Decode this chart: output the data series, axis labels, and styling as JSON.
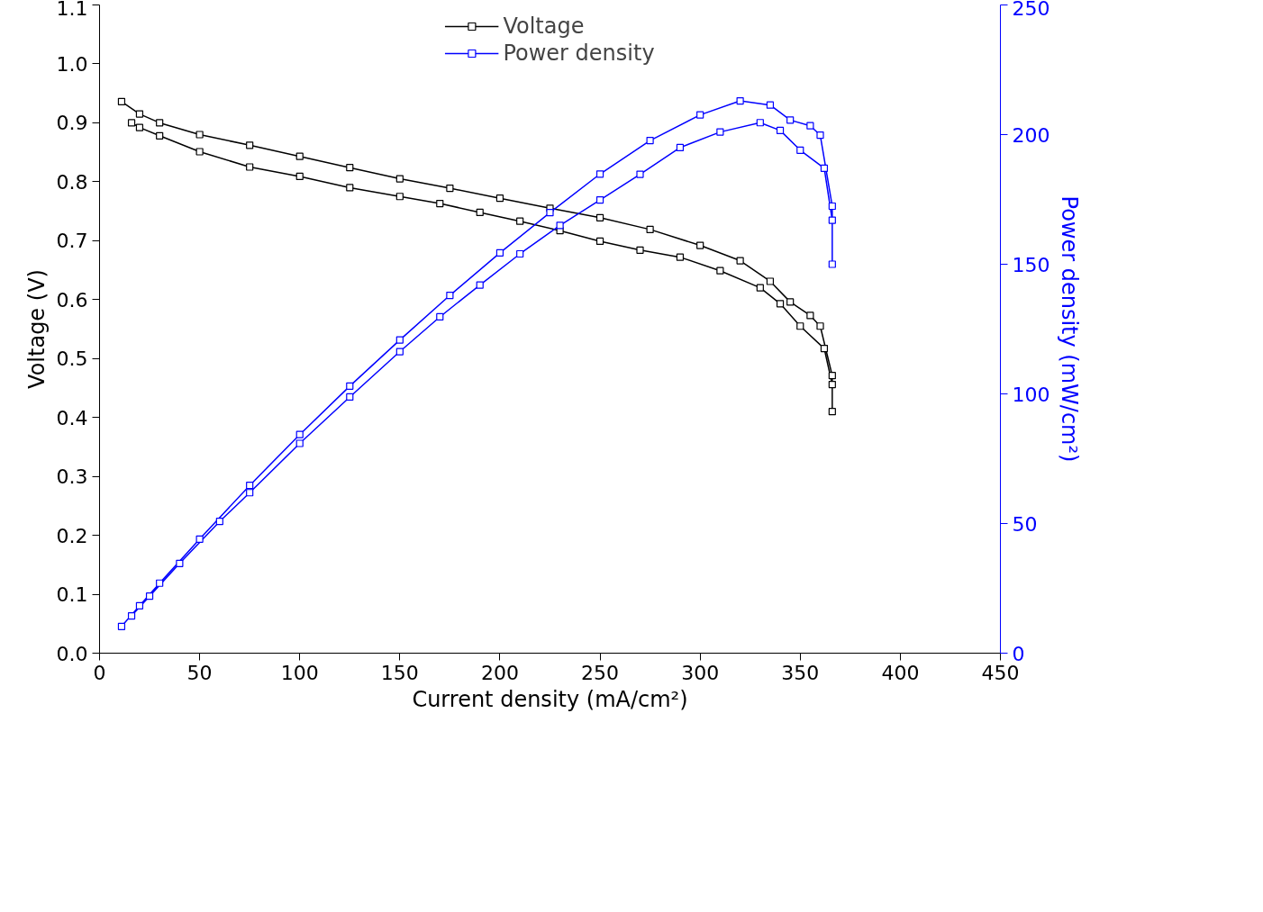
{
  "chart_data": {
    "type": "line",
    "xlabel": "Current density (mA/cm²)",
    "ylabel": "Voltage (V)",
    "y2label": "Power density (mW/cm²)",
    "xlim": [
      0,
      450
    ],
    "xticks": [
      0,
      50,
      100,
      150,
      200,
      250,
      300,
      350,
      400,
      450
    ],
    "ylim": [
      0,
      1.1
    ],
    "yticks": [
      {
        "value": 0,
        "label": "0.0"
      },
      0.1,
      0.2,
      0.3,
      0.4,
      0.5,
      0.6,
      0.7,
      0.8,
      0.9,
      {
        "value": 1.0,
        "label": "1.0"
      },
      1.1
    ],
    "y2lim": [
      0,
      250
    ],
    "y2ticks": [
      0,
      50,
      100,
      150,
      200,
      250
    ],
    "marker": "square",
    "legend": "top",
    "grid": false,
    "series": [
      {
        "name": "Voltage",
        "color": "#000000",
        "x": [
          11,
          20,
          30,
          50,
          75,
          100,
          125,
          150,
          175,
          200,
          225,
          250,
          275,
          300,
          320,
          335,
          345,
          355,
          360,
          366,
          366,
          366,
          362,
          350,
          340,
          330,
          310,
          290,
          270,
          250,
          230,
          210,
          190,
          170,
          150,
          125,
          100,
          75,
          50,
          30,
          20,
          16
        ],
        "values": [
          0.936,
          0.915,
          0.9,
          0.88,
          0.862,
          0.843,
          0.824,
          0.805,
          0.789,
          0.772,
          0.755,
          0.739,
          0.719,
          0.692,
          0.666,
          0.631,
          0.596,
          0.573,
          0.555,
          0.471,
          0.41,
          0.456,
          0.517,
          0.555,
          0.593,
          0.62,
          0.649,
          0.672,
          0.684,
          0.699,
          0.717,
          0.733,
          0.748,
          0.763,
          0.775,
          0.79,
          0.809,
          0.825,
          0.851,
          0.878,
          0.892,
          0.9
        ]
      },
      {
        "name": "Power density",
        "color": "#0000ff",
        "axis": "y2",
        "x": [
          11,
          20,
          30,
          50,
          75,
          100,
          125,
          150,
          175,
          200,
          225,
          250,
          275,
          300,
          320,
          335,
          345,
          355,
          360,
          366,
          366,
          366,
          362,
          350,
          340,
          330,
          310,
          290,
          270,
          250,
          230,
          210,
          190,
          170,
          150,
          125,
          100,
          75,
          60,
          40,
          25,
          16
        ],
        "values": [
          10.3,
          18.3,
          27,
          44,
          64.7,
          84.3,
          103,
          120.8,
          138,
          154.4,
          169.9,
          184.8,
          197.7,
          207.6,
          213,
          211.4,
          205.6,
          203.4,
          199.8,
          172.4,
          150,
          167,
          187,
          194,
          201.6,
          204.6,
          201,
          195,
          184.7,
          174.8,
          165,
          154,
          142,
          129.7,
          116.3,
          98.8,
          80.9,
          61.9,
          50.8,
          34.6,
          22,
          14.4
        ]
      }
    ]
  }
}
